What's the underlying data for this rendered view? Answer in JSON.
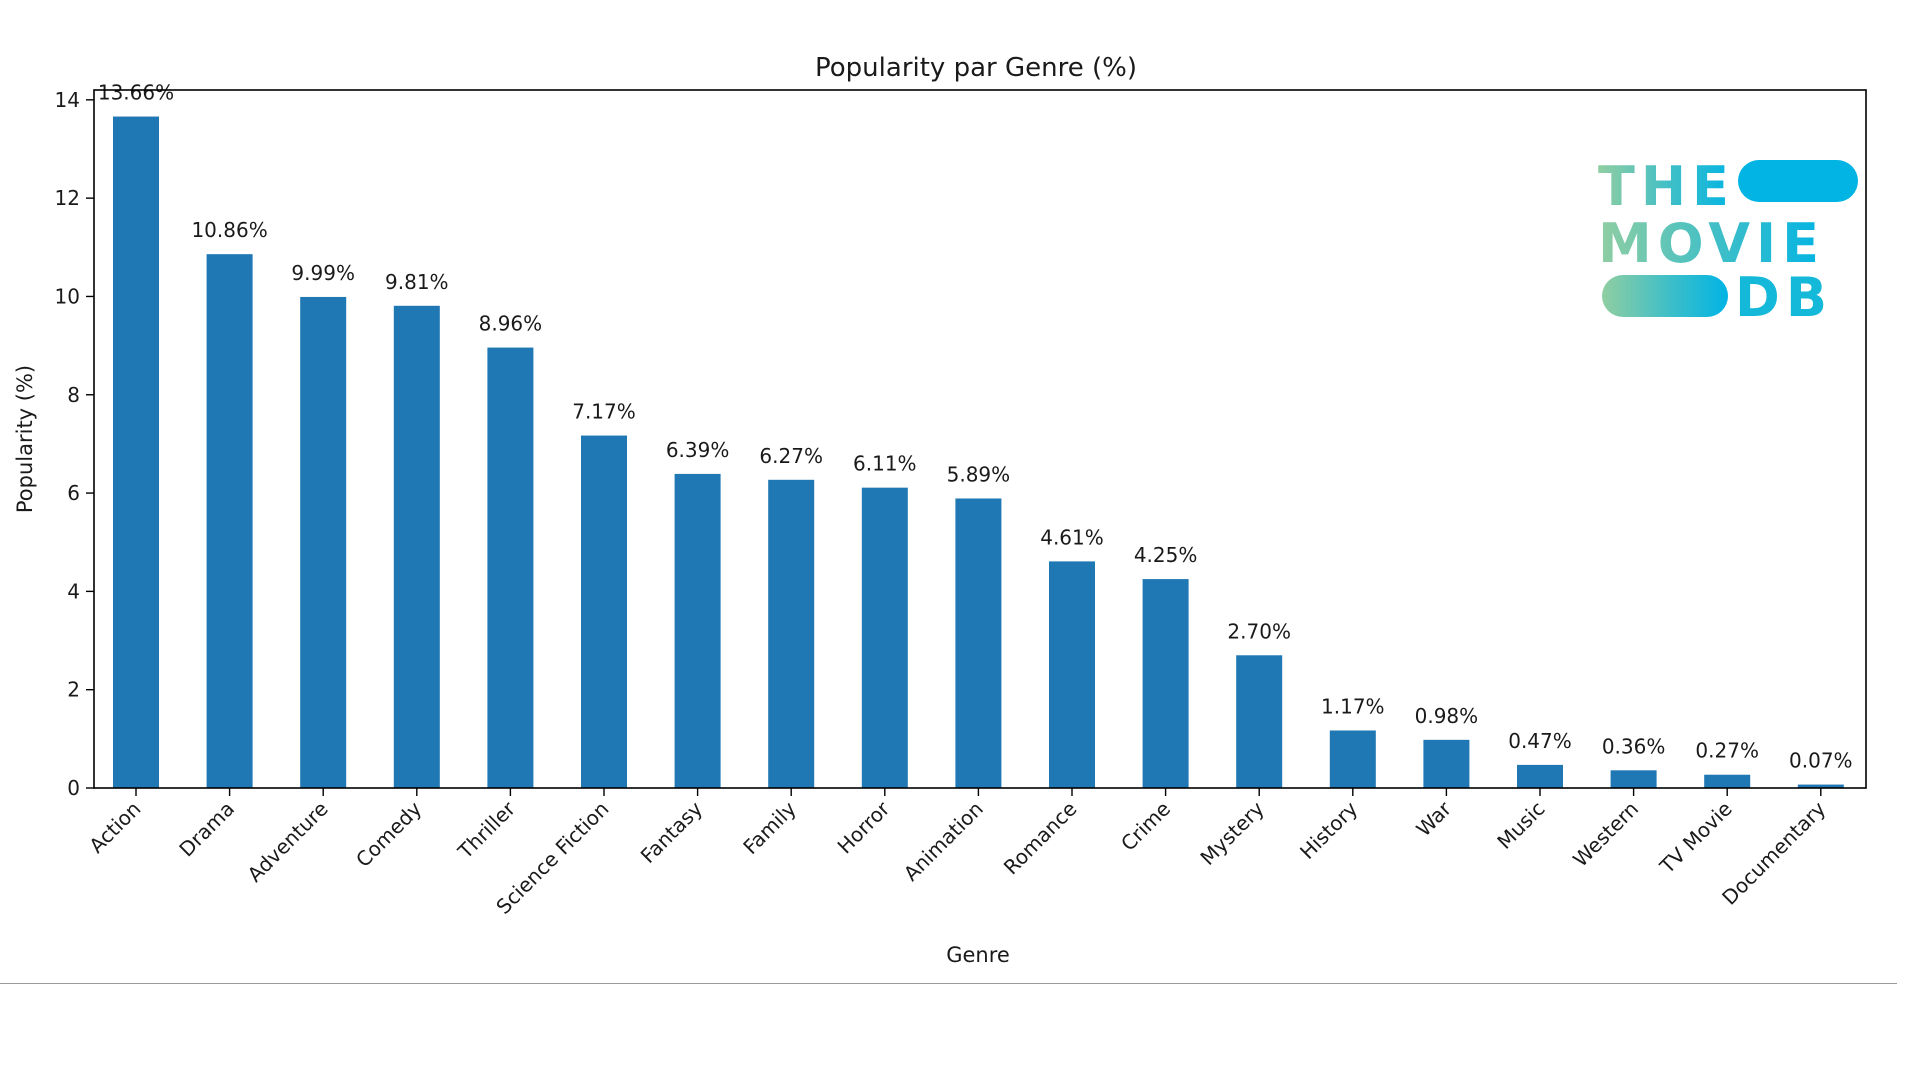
{
  "colors": {
    "bar": "#1f77b4",
    "axis": "#000000",
    "text": "#1a1a1a",
    "divider": "#9a9a9a",
    "logo_gradient_start": "#90cea1",
    "logo_gradient_mid": "#3cbec9",
    "logo_gradient_end": "#01b4e4"
  },
  "logo": {
    "line1": "THE",
    "line2": "MOVIE",
    "line3": "DB",
    "icon": "tmdb-logo"
  },
  "chart_data": {
    "type": "bar",
    "title": "Popularity par Genre (%)",
    "xlabel": "Genre",
    "ylabel": "Popularity (%)",
    "ylim": [
      0,
      14.2
    ],
    "yticks": [
      0,
      2,
      4,
      6,
      8,
      10,
      12,
      14
    ],
    "grid": false,
    "categories": [
      "Action",
      "Drama",
      "Adventure",
      "Comedy",
      "Thriller",
      "Science Fiction",
      "Fantasy",
      "Family",
      "Horror",
      "Animation",
      "Romance",
      "Crime",
      "Mystery",
      "History",
      "War",
      "Music",
      "Western",
      "TV Movie",
      "Documentary"
    ],
    "values": [
      13.66,
      10.86,
      9.99,
      9.81,
      8.96,
      7.17,
      6.39,
      6.27,
      6.11,
      5.89,
      4.61,
      4.25,
      2.7,
      1.17,
      0.98,
      0.47,
      0.36,
      0.27,
      0.07
    ],
    "data_labels": [
      "13.66%",
      "10.86%",
      "9.99%",
      "9.81%",
      "8.96%",
      "7.17%",
      "6.39%",
      "6.27%",
      "6.11%",
      "5.89%",
      "4.61%",
      "4.25%",
      "2.70%",
      "1.17%",
      "0.98%",
      "0.47%",
      "0.36%",
      "0.27%",
      "0.07%"
    ]
  }
}
